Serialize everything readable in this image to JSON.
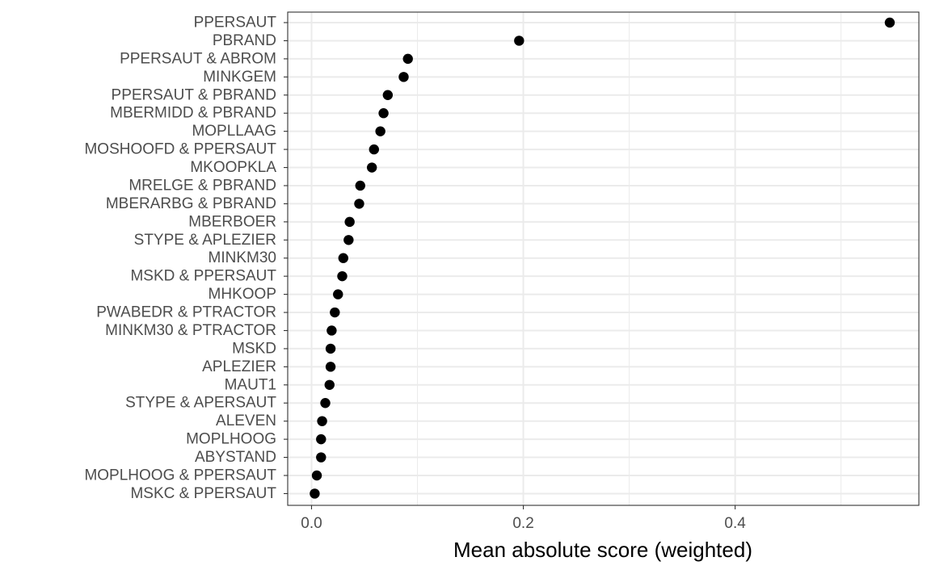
{
  "chart_data": {
    "type": "scatter",
    "title": "",
    "xlabel": "Mean absolute score (weighted)",
    "ylabel": "",
    "xlim": [
      -0.0225,
      0.5735
    ],
    "x_ticks": [
      0.0,
      0.2,
      0.4
    ],
    "x_tick_labels": [
      "0.0",
      "0.2",
      "0.4"
    ],
    "x_minor_ticks": [
      0.1,
      0.3,
      0.5
    ],
    "grid": true,
    "legend": "none",
    "colors": {
      "point": "#000000",
      "grid": "#ebebeb",
      "panel_border": "#333333",
      "tick_label": "#4d4d4d"
    },
    "categories": [
      "PPERSAUT",
      "PBRAND",
      "PPERSAUT & ABROM",
      "MINKGEM",
      "PPERSAUT & PBRAND",
      "MBERMIDD & PBRAND",
      "MOPLLAAG",
      "MOSHOOFD & PPERSAUT",
      "MKOOPKLA",
      "MRELGE & PBRAND",
      "MBERARBG & PBRAND",
      "MBERBOER",
      "STYPE & APLEZIER",
      "MINKM30",
      "MSKD & PPERSAUT",
      "MHKOOP",
      "PWABEDR & PTRACTOR",
      "MINKM30 & PTRACTOR",
      "MSKD",
      "APLEZIER",
      "MAUT1",
      "STYPE & APERSAUT",
      "ALEVEN",
      "MOPLHOOG",
      "ABYSTAND",
      "MOPLHOOG & PPERSAUT",
      "MSKC & PPERSAUT"
    ],
    "values": [
      0.546,
      0.196,
      0.091,
      0.087,
      0.072,
      0.068,
      0.065,
      0.059,
      0.057,
      0.046,
      0.045,
      0.036,
      0.035,
      0.03,
      0.029,
      0.025,
      0.022,
      0.019,
      0.018,
      0.018,
      0.017,
      0.013,
      0.01,
      0.009,
      0.009,
      0.005,
      0.003
    ]
  }
}
